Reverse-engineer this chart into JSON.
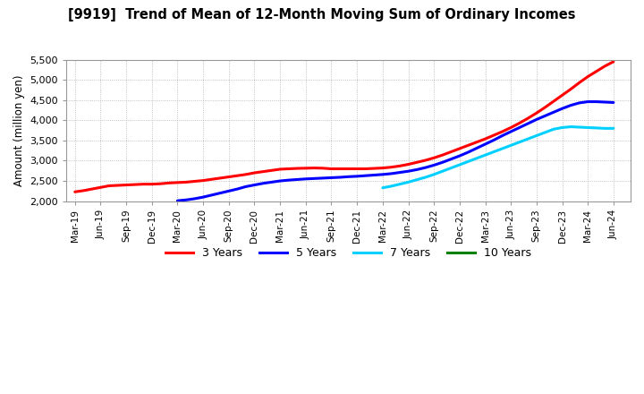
{
  "title": "[9919]  Trend of Mean of 12-Month Moving Sum of Ordinary Incomes",
  "ylabel": "Amount (million yen)",
  "ylim": [
    2000,
    5500
  ],
  "yticks": [
    2000,
    2500,
    3000,
    3500,
    4000,
    4500,
    5000,
    5500
  ],
  "background_color": "#ffffff",
  "grid_color": "#b0b0b0",
  "series": {
    "3 Years": {
      "color": "#ff0000",
      "start_month": 0,
      "values": [
        2230,
        2260,
        2300,
        2340,
        2380,
        2390,
        2400,
        2410,
        2420,
        2420,
        2430,
        2450,
        2460,
        2470,
        2490,
        2510,
        2540,
        2570,
        2600,
        2630,
        2660,
        2700,
        2730,
        2760,
        2790,
        2800,
        2810,
        2815,
        2820,
        2815,
        2800,
        2800,
        2800,
        2800,
        2800,
        2810,
        2820,
        2840,
        2870,
        2910,
        2960,
        3010,
        3070,
        3140,
        3220,
        3300,
        3380,
        3460,
        3540,
        3630,
        3720,
        3820,
        3930,
        4050,
        4180,
        4320,
        4470,
        4620,
        4770,
        4930,
        5080,
        5210,
        5340,
        5450
      ]
    },
    "5 Years": {
      "color": "#0000ff",
      "start_month": 12,
      "values": [
        2010,
        2030,
        2060,
        2100,
        2150,
        2200,
        2250,
        2300,
        2360,
        2400,
        2440,
        2470,
        2500,
        2520,
        2535,
        2550,
        2560,
        2570,
        2580,
        2590,
        2605,
        2615,
        2630,
        2645,
        2660,
        2680,
        2710,
        2740,
        2780,
        2830,
        2890,
        2960,
        3040,
        3120,
        3210,
        3310,
        3410,
        3510,
        3620,
        3720,
        3820,
        3920,
        4020,
        4110,
        4200,
        4290,
        4370,
        4430,
        4460,
        4460,
        4450,
        4440
      ]
    },
    "7 Years": {
      "color": "#00d0ff",
      "start_month": 36,
      "values": [
        2330,
        2370,
        2420,
        2470,
        2530,
        2590,
        2660,
        2740,
        2820,
        2900,
        2980,
        3060,
        3140,
        3220,
        3300,
        3380,
        3460,
        3540,
        3620,
        3700,
        3780,
        3820,
        3840,
        3830,
        3820,
        3810,
        3800,
        3800
      ]
    },
    "10 Years": {
      "color": "#008000",
      "start_month": -1,
      "values": []
    }
  },
  "x_labels": [
    "Mar-19",
    "Jun-19",
    "Sep-19",
    "Dec-19",
    "Mar-20",
    "Jun-20",
    "Sep-20",
    "Dec-20",
    "Mar-21",
    "Jun-21",
    "Sep-21",
    "Dec-21",
    "Mar-22",
    "Jun-22",
    "Sep-22",
    "Dec-22",
    "Mar-23",
    "Jun-23",
    "Sep-23",
    "Dec-23",
    "Mar-24",
    "Jun-24"
  ],
  "x_tick_months": [
    0,
    3,
    6,
    9,
    12,
    15,
    18,
    21,
    24,
    27,
    30,
    33,
    36,
    39,
    42,
    45,
    48,
    51,
    54,
    57,
    60,
    63
  ],
  "total_months": 63,
  "legend_labels": [
    "3 Years",
    "5 Years",
    "7 Years",
    "10 Years"
  ],
  "legend_colors": [
    "#ff0000",
    "#0000ff",
    "#00d0ff",
    "#008000"
  ]
}
